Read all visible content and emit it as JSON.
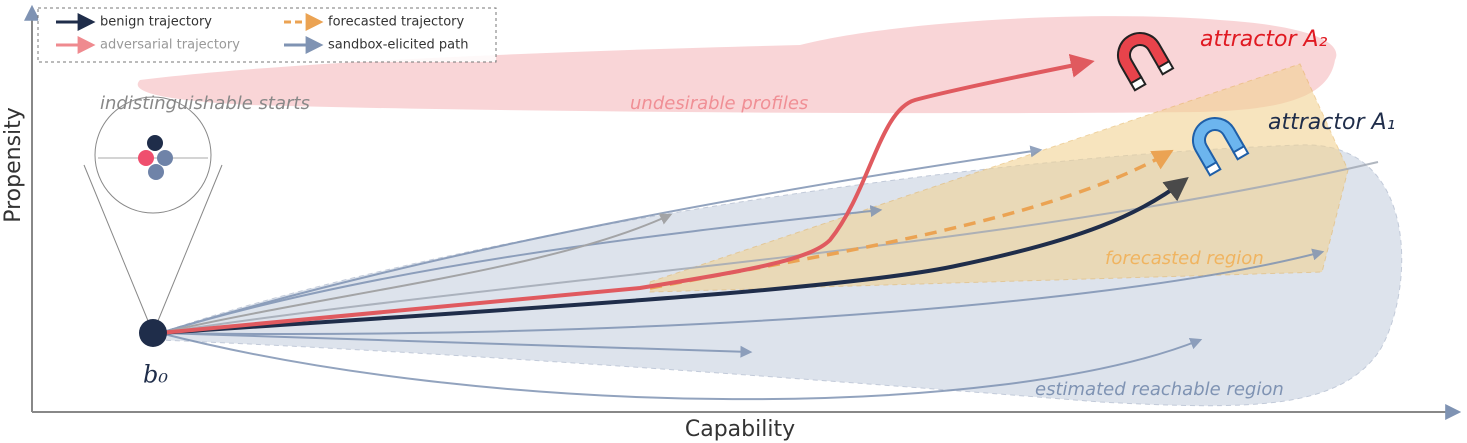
{
  "axes": {
    "x_label": "Capability",
    "y_label": "Propensity"
  },
  "legend": [
    "benign trajectory",
    "forecasted trajectory",
    "adversarial trajectory",
    "sandbox-elicited path"
  ],
  "labels": {
    "starts": "indistinguishable starts",
    "undesirable": "undesirable profiles",
    "attractor_2": "attractor A₂",
    "attractor_1": "attractor A₁",
    "forecasted_region": "forecasted region",
    "reachable_region": "estimated reachable region",
    "start_point": "b₀"
  }
}
